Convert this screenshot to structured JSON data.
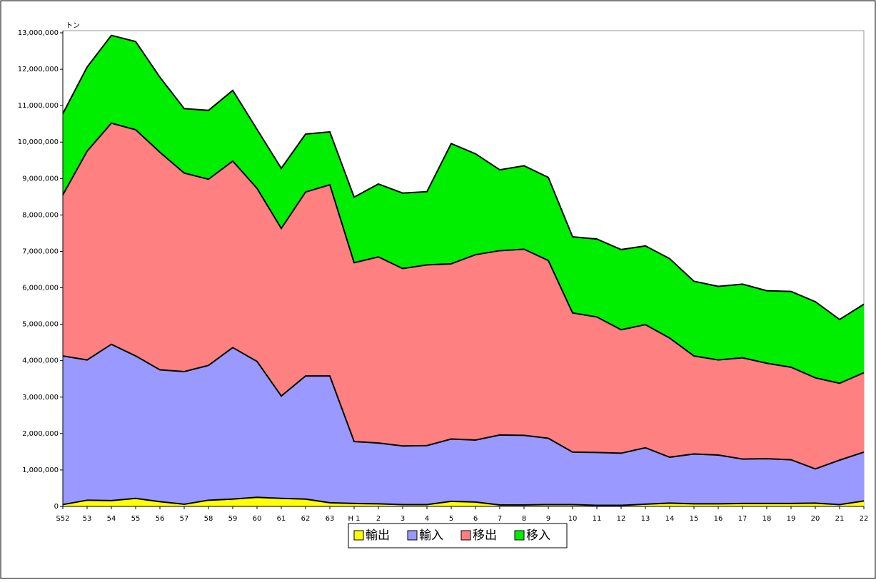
{
  "chart_data": {
    "type": "stacked-area",
    "y_unit_label": "トン",
    "categories": [
      "S52",
      "53",
      "54",
      "55",
      "56",
      "57",
      "58",
      "59",
      "60",
      "61",
      "62",
      "63",
      "H 1",
      "2",
      "3",
      "4",
      "5",
      "6",
      "7",
      "8",
      "9",
      "10",
      "11",
      "12",
      "13",
      "14",
      "15",
      "16",
      "17",
      "18",
      "19",
      "20",
      "21",
      "22"
    ],
    "series": [
      {
        "name": "輸出",
        "color": "#ffff00",
        "values": [
          50000,
          170000,
          160000,
          220000,
          130000,
          60000,
          170000,
          200000,
          250000,
          220000,
          200000,
          100000,
          80000,
          70000,
          50000,
          50000,
          140000,
          120000,
          40000,
          40000,
          50000,
          50000,
          30000,
          30000,
          60000,
          90000,
          70000,
          70000,
          80000,
          80000,
          80000,
          90000,
          50000,
          150000
        ]
      },
      {
        "name": "輸入",
        "color": "#9999ff",
        "values": [
          4080000,
          3850000,
          4290000,
          3910000,
          3620000,
          3640000,
          3700000,
          4160000,
          3730000,
          2810000,
          3380000,
          3480000,
          1700000,
          1670000,
          1610000,
          1620000,
          1710000,
          1700000,
          1920000,
          1910000,
          1820000,
          1440000,
          1450000,
          1430000,
          1550000,
          1260000,
          1370000,
          1340000,
          1220000,
          1230000,
          1200000,
          940000,
          1220000,
          1340000
        ]
      },
      {
        "name": "移出",
        "color": "#ff8080",
        "values": [
          4420000,
          5730000,
          6070000,
          6210000,
          5970000,
          5450000,
          5110000,
          5120000,
          4750000,
          4600000,
          5050000,
          5250000,
          4910000,
          5110000,
          4870000,
          4960000,
          4810000,
          5090000,
          5060000,
          5110000,
          4880000,
          3820000,
          3720000,
          3390000,
          3380000,
          3270000,
          2690000,
          2610000,
          2780000,
          2620000,
          2540000,
          2500000,
          2110000,
          2180000
        ]
      },
      {
        "name": "移入",
        "color": "#00ee00",
        "values": [
          2230000,
          2310000,
          2410000,
          2420000,
          2060000,
          1770000,
          1890000,
          1940000,
          1620000,
          1650000,
          1590000,
          1450000,
          1800000,
          2000000,
          2070000,
          2010000,
          3300000,
          2770000,
          2220000,
          2290000,
          2280000,
          2090000,
          2140000,
          2200000,
          2160000,
          2180000,
          2050000,
          2020000,
          2020000,
          1990000,
          2080000,
          2090000,
          1750000,
          1880000
        ]
      }
    ],
    "ylim": [
      0,
      13000000
    ],
    "yticks": [
      0,
      {
        "value": 1000000,
        "label": "1,000,000"
      },
      {
        "value": 2000000,
        "label": "2,000,000"
      },
      {
        "value": 3000000,
        "label": "3,000,000"
      },
      {
        "value": 4000000,
        "label": "4,000,000"
      },
      {
        "value": 5000000,
        "label": "5,000,000"
      },
      {
        "value": 6000000,
        "label": "6,000,000"
      },
      {
        "value": 7000000,
        "label": "7,000,000"
      },
      {
        "value": 8000000,
        "label": "8,000,000"
      },
      {
        "value": 9000000,
        "label": "9,000,000"
      },
      {
        "value": 10000000,
        "label": "10,000,000"
      },
      {
        "value": 11000000,
        "label": "11,000,000"
      },
      {
        "value": 12000000,
        "label": "12,000,000"
      },
      {
        "value": 13000000,
        "label": "13,000,000"
      }
    ],
    "legend": "bottom"
  }
}
